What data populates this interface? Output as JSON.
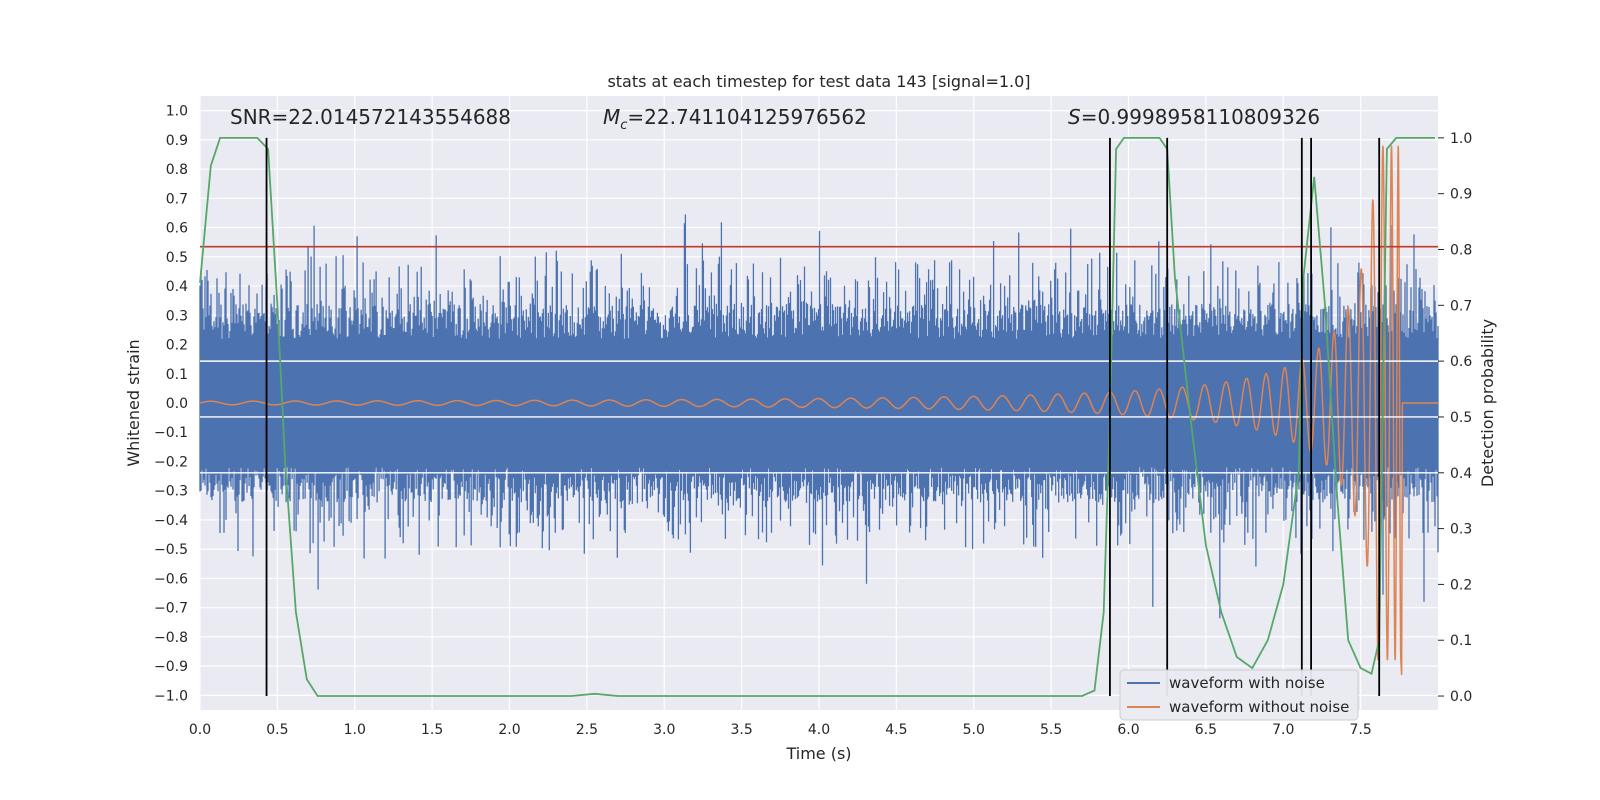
{
  "chart_data": {
    "type": "line",
    "title": "stats at each timestep for test data 143 [signal=1.0]",
    "xlabel": "Time (s)",
    "ylabel": "Whitened strain",
    "y2label": "Detection probability",
    "xlim": [
      0.0,
      8.0
    ],
    "ylim": [
      -1.05,
      1.05
    ],
    "y2lim": [
      -0.025,
      1.075
    ],
    "xticks": [
      "0.0",
      "0.5",
      "1.0",
      "1.5",
      "2.0",
      "2.5",
      "3.0",
      "3.5",
      "4.0",
      "4.5",
      "5.0",
      "5.5",
      "6.0",
      "6.5",
      "7.0",
      "7.5"
    ],
    "xtick_values": [
      0.0,
      0.5,
      1.0,
      1.5,
      2.0,
      2.5,
      3.0,
      3.5,
      4.0,
      4.5,
      5.0,
      5.5,
      6.0,
      6.5,
      7.0,
      7.5
    ],
    "yticks": [
      "1.0",
      "0.9",
      "0.8",
      "0.7",
      "0.6",
      "0.5",
      "0.4",
      "0.3",
      "0.2",
      "0.1",
      "0.0",
      "−0.1",
      "−0.2",
      "−0.3",
      "−0.4",
      "−0.5",
      "−0.6",
      "−0.7",
      "−0.8",
      "−0.9",
      "−1.0"
    ],
    "ytick_values": [
      1.0,
      0.9,
      0.8,
      0.7,
      0.6,
      0.5,
      0.4,
      0.3,
      0.2,
      0.1,
      0.0,
      -0.1,
      -0.2,
      -0.3,
      -0.4,
      -0.5,
      -0.6,
      -0.7,
      -0.8,
      -0.9,
      -1.0
    ],
    "y2ticks": [
      "1.0",
      "0.9",
      "0.8",
      "0.7",
      "0.6",
      "0.5",
      "0.4",
      "0.3",
      "0.2",
      "0.1",
      "0.0"
    ],
    "y2tick_values": [
      1.0,
      0.9,
      0.8,
      0.7,
      0.6,
      0.5,
      0.4,
      0.3,
      0.2,
      0.1,
      0.0
    ],
    "annotations": {
      "snr": "SNR=22.014572143554688",
      "mc_symbol": "M",
      "mc_sub": "c",
      "mc_value": "=22.741104125976562",
      "s_symbol": "S",
      "s_value": "=0.9998958110809326"
    },
    "threshold_line": {
      "y": 0.805,
      "color": "#c0392b"
    },
    "horizontal_marker_lines_prob": [
      0.4,
      0.5,
      0.6
    ],
    "vertical_markers_time": [
      0.43,
      5.88,
      6.25,
      7.12,
      7.18,
      7.62
    ],
    "noisy_waveform": {
      "name": "waveform with noise",
      "color": "#4c72b0",
      "typical_amplitude": 0.22,
      "max_positive": 0.87,
      "max_negative": -0.93
    },
    "clean_waveform": {
      "name": "waveform without noise",
      "color": "#dd8452",
      "t_start": 0.0,
      "t_end": 7.76,
      "t_merger": 7.76
    },
    "detection_probability": {
      "name": "detection probability",
      "color": "#55a868",
      "t": [
        0.0,
        0.07,
        0.13,
        0.2,
        0.3,
        0.37,
        0.44,
        0.5,
        0.55,
        0.62,
        0.69,
        0.76,
        0.82,
        1.0,
        1.5,
        2.0,
        2.4,
        2.55,
        2.7,
        3.0,
        4.0,
        5.0,
        5.5,
        5.7,
        5.78,
        5.84,
        5.88,
        5.92,
        5.97,
        6.04,
        6.1,
        6.2,
        6.25,
        6.3,
        6.4,
        6.5,
        6.6,
        6.7,
        6.8,
        6.9,
        7.0,
        7.1,
        7.13,
        7.2,
        7.27,
        7.35,
        7.42,
        7.5,
        7.57,
        7.62,
        7.67,
        7.73,
        7.8,
        7.9,
        7.98
      ],
      "p": [
        0.74,
        0.95,
        1.0,
        1.0,
        1.0,
        1.0,
        0.98,
        0.7,
        0.42,
        0.15,
        0.03,
        0.0,
        0.0,
        0.0,
        0.0,
        0.0,
        0.0,
        0.004,
        0.0,
        0.0,
        0.0,
        0.0,
        0.0,
        0.0,
        0.01,
        0.15,
        0.5,
        0.98,
        1.0,
        1.0,
        1.0,
        1.0,
        0.98,
        0.75,
        0.5,
        0.27,
        0.15,
        0.07,
        0.05,
        0.1,
        0.2,
        0.4,
        0.75,
        0.93,
        0.7,
        0.35,
        0.1,
        0.05,
        0.04,
        0.1,
        0.98,
        1.0,
        1.0,
        1.0,
        1.0
      ]
    },
    "legend": {
      "position": "lower-right",
      "entries": [
        {
          "label": "waveform with noise",
          "color": "#4c72b0"
        },
        {
          "label": "waveform without noise",
          "color": "#dd8452"
        }
      ]
    },
    "grid": true,
    "background_color": "#eaeaf2"
  }
}
